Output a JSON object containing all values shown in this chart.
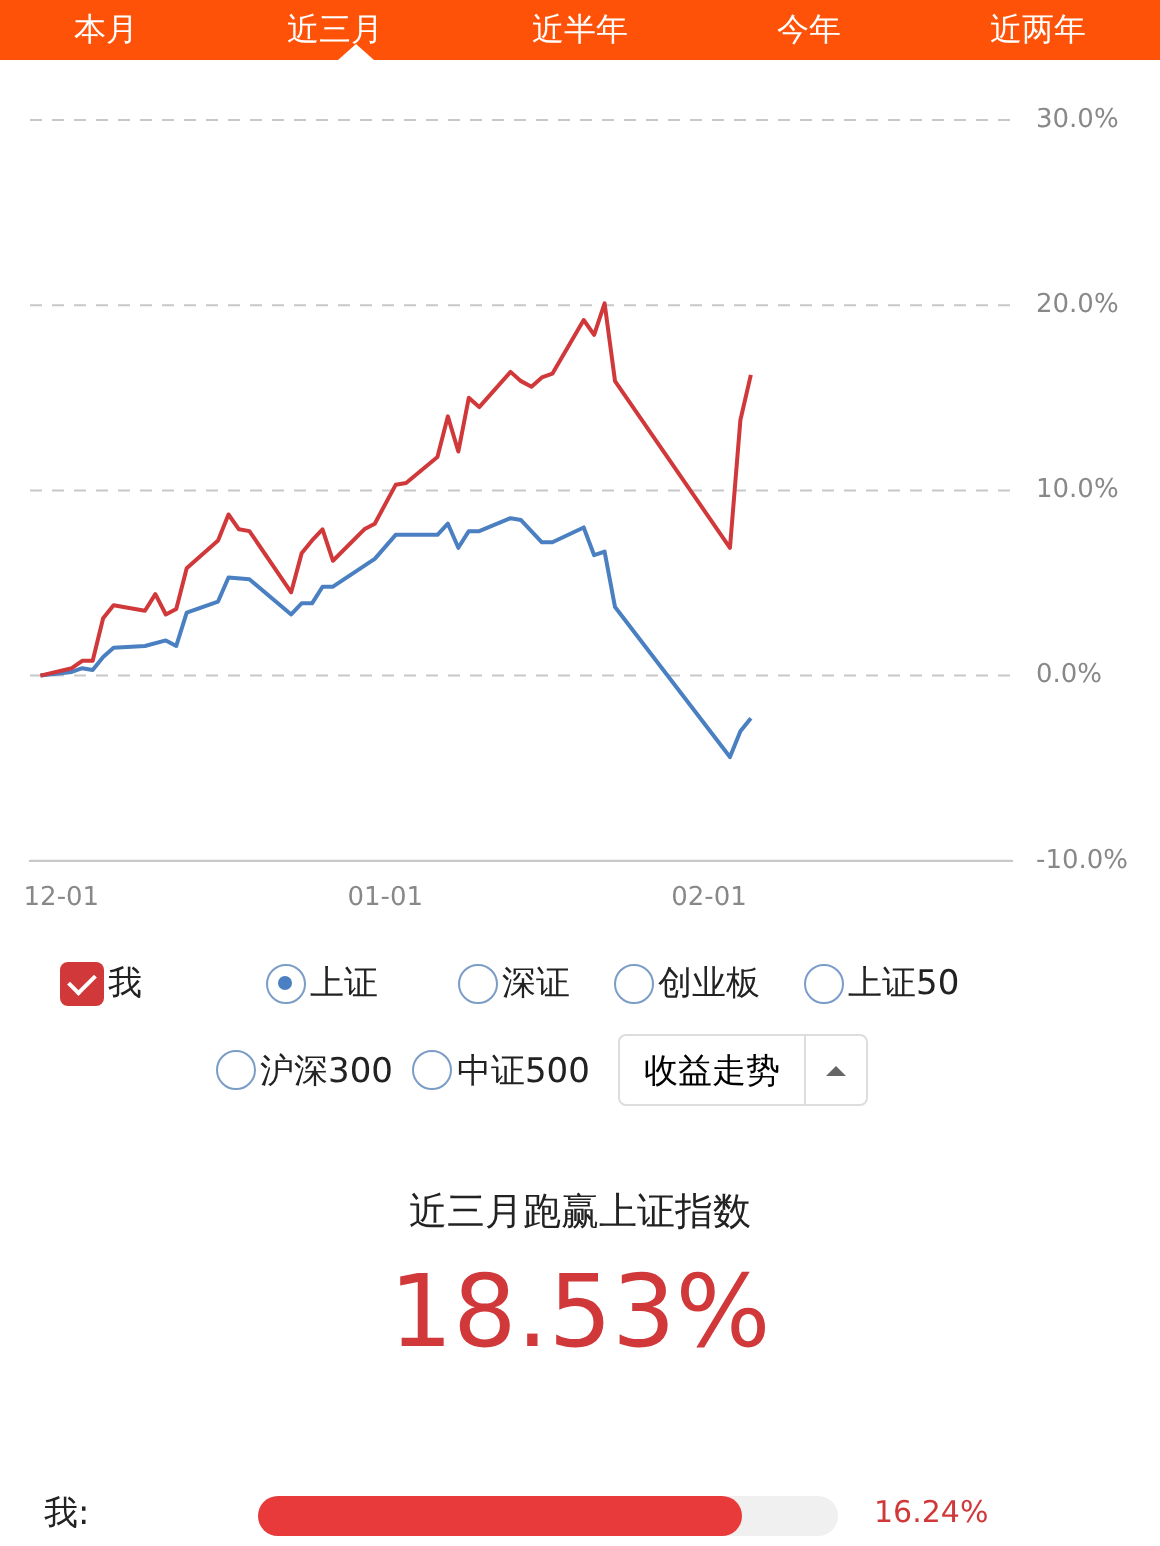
{
  "chart_data": {
    "type": "line",
    "annotations": [
      "本月",
      "近三月",
      "近半年",
      "今年",
      "近两年",
      "深证",
      "创业板",
      "上证50",
      "沪深300",
      "中证500",
      "收益走势",
      "近三月跑赢上证指数",
      "18.53%",
      "我:",
      "16.24%"
    ],
    "series": [
      {
        "name": "我",
        "color": "#d0383a",
        "values": [
          null,
          0,
          null,
          null,
          0.4,
          0.8,
          0.8,
          3.1,
          3.8,
          null,
          null,
          3.5,
          4.4,
          3.3,
          3.6,
          5.8,
          6.3,
          null,
          7.3,
          8.7,
          7.9,
          7.8,
          null,
          null,
          null,
          4.5,
          6.6,
          7.3,
          7.9,
          6.2,
          null,
          null,
          7.9,
          8.2,
          null,
          10.3,
          10.4,
          null,
          null,
          11.8,
          14.0,
          12.1,
          15.0,
          14.5,
          null,
          null,
          16.4,
          15.9,
          15.6,
          16.1,
          16.3,
          null,
          null,
          19.2,
          18.4,
          20.1,
          15.9,
          null,
          null,
          null,
          null,
          null,
          null,
          null,
          null,
          null,
          null,
          6.9,
          13.8,
          16.24,
          null,
          null,
          null,
          null,
          null,
          null,
          null,
          null,
          null,
          null,
          null,
          null,
          null,
          null,
          null,
          null,
          null,
          null,
          null,
          null,
          null,
          null,
          null,
          null,
          null
        ]
      },
      {
        "name": "上证",
        "color": "#4a7fc1",
        "values": [
          null,
          0,
          null,
          null,
          0.2,
          0.4,
          0.3,
          1.0,
          1.5,
          null,
          null,
          1.6,
          null,
          1.9,
          1.6,
          3.4,
          null,
          null,
          4.0,
          5.3,
          null,
          5.2,
          null,
          null,
          null,
          3.3,
          3.9,
          3.9,
          4.8,
          4.8,
          null,
          null,
          null,
          6.3,
          null,
          7.6,
          null,
          null,
          null,
          7.6,
          8.2,
          6.9,
          7.8,
          7.8,
          null,
          null,
          8.5,
          8.4,
          null,
          7.2,
          7.2,
          null,
          null,
          8.0,
          6.5,
          6.7,
          3.7,
          null,
          null,
          null,
          null,
          null,
          null,
          null,
          null,
          null,
          null,
          -4.4,
          -3.0,
          -2.3,
          null,
          null,
          null,
          null,
          null,
          null,
          null,
          null,
          null,
          null,
          null,
          null,
          null,
          null,
          null,
          null,
          null,
          null,
          null,
          null,
          null,
          null,
          null,
          null,
          null
        ]
      }
    ],
    "categories": [
      null,
      null,
      null,
      "12-01",
      null,
      null,
      null,
      null,
      null,
      null,
      null,
      null,
      null,
      null,
      null,
      null,
      null,
      null,
      null,
      null,
      null,
      null,
      null,
      null,
      null,
      null,
      null,
      null,
      null,
      null,
      null,
      null,
      null,
      null,
      "01-01",
      null,
      null,
      null,
      null,
      null,
      null,
      null,
      null,
      null,
      null,
      null,
      null,
      null,
      null,
      null,
      null,
      null,
      null,
      null,
      null,
      null,
      null,
      null,
      null,
      null,
      null,
      null,
      null,
      null,
      null,
      "02-01",
      null,
      null,
      null,
      null,
      null,
      null,
      null,
      null,
      null,
      null,
      null,
      null,
      null,
      null,
      null,
      null,
      null,
      null,
      null,
      null,
      null,
      null,
      null,
      null,
      null,
      null,
      null,
      null,
      null
    ],
    "ylim": [
      -10,
      30
    ],
    "yticks": [
      {
        "value": -10,
        "label": "-10.0%"
      },
      {
        "value": 0,
        "label": "0.0%"
      },
      {
        "value": 10,
        "label": "10.0%"
      },
      {
        "value": 20,
        "label": "20.0%"
      },
      {
        "value": 30,
        "label": "30.0%"
      }
    ],
    "grid": "y",
    "legend": "bottom",
    "marker": "none",
    "line_style": "solid"
  }
}
